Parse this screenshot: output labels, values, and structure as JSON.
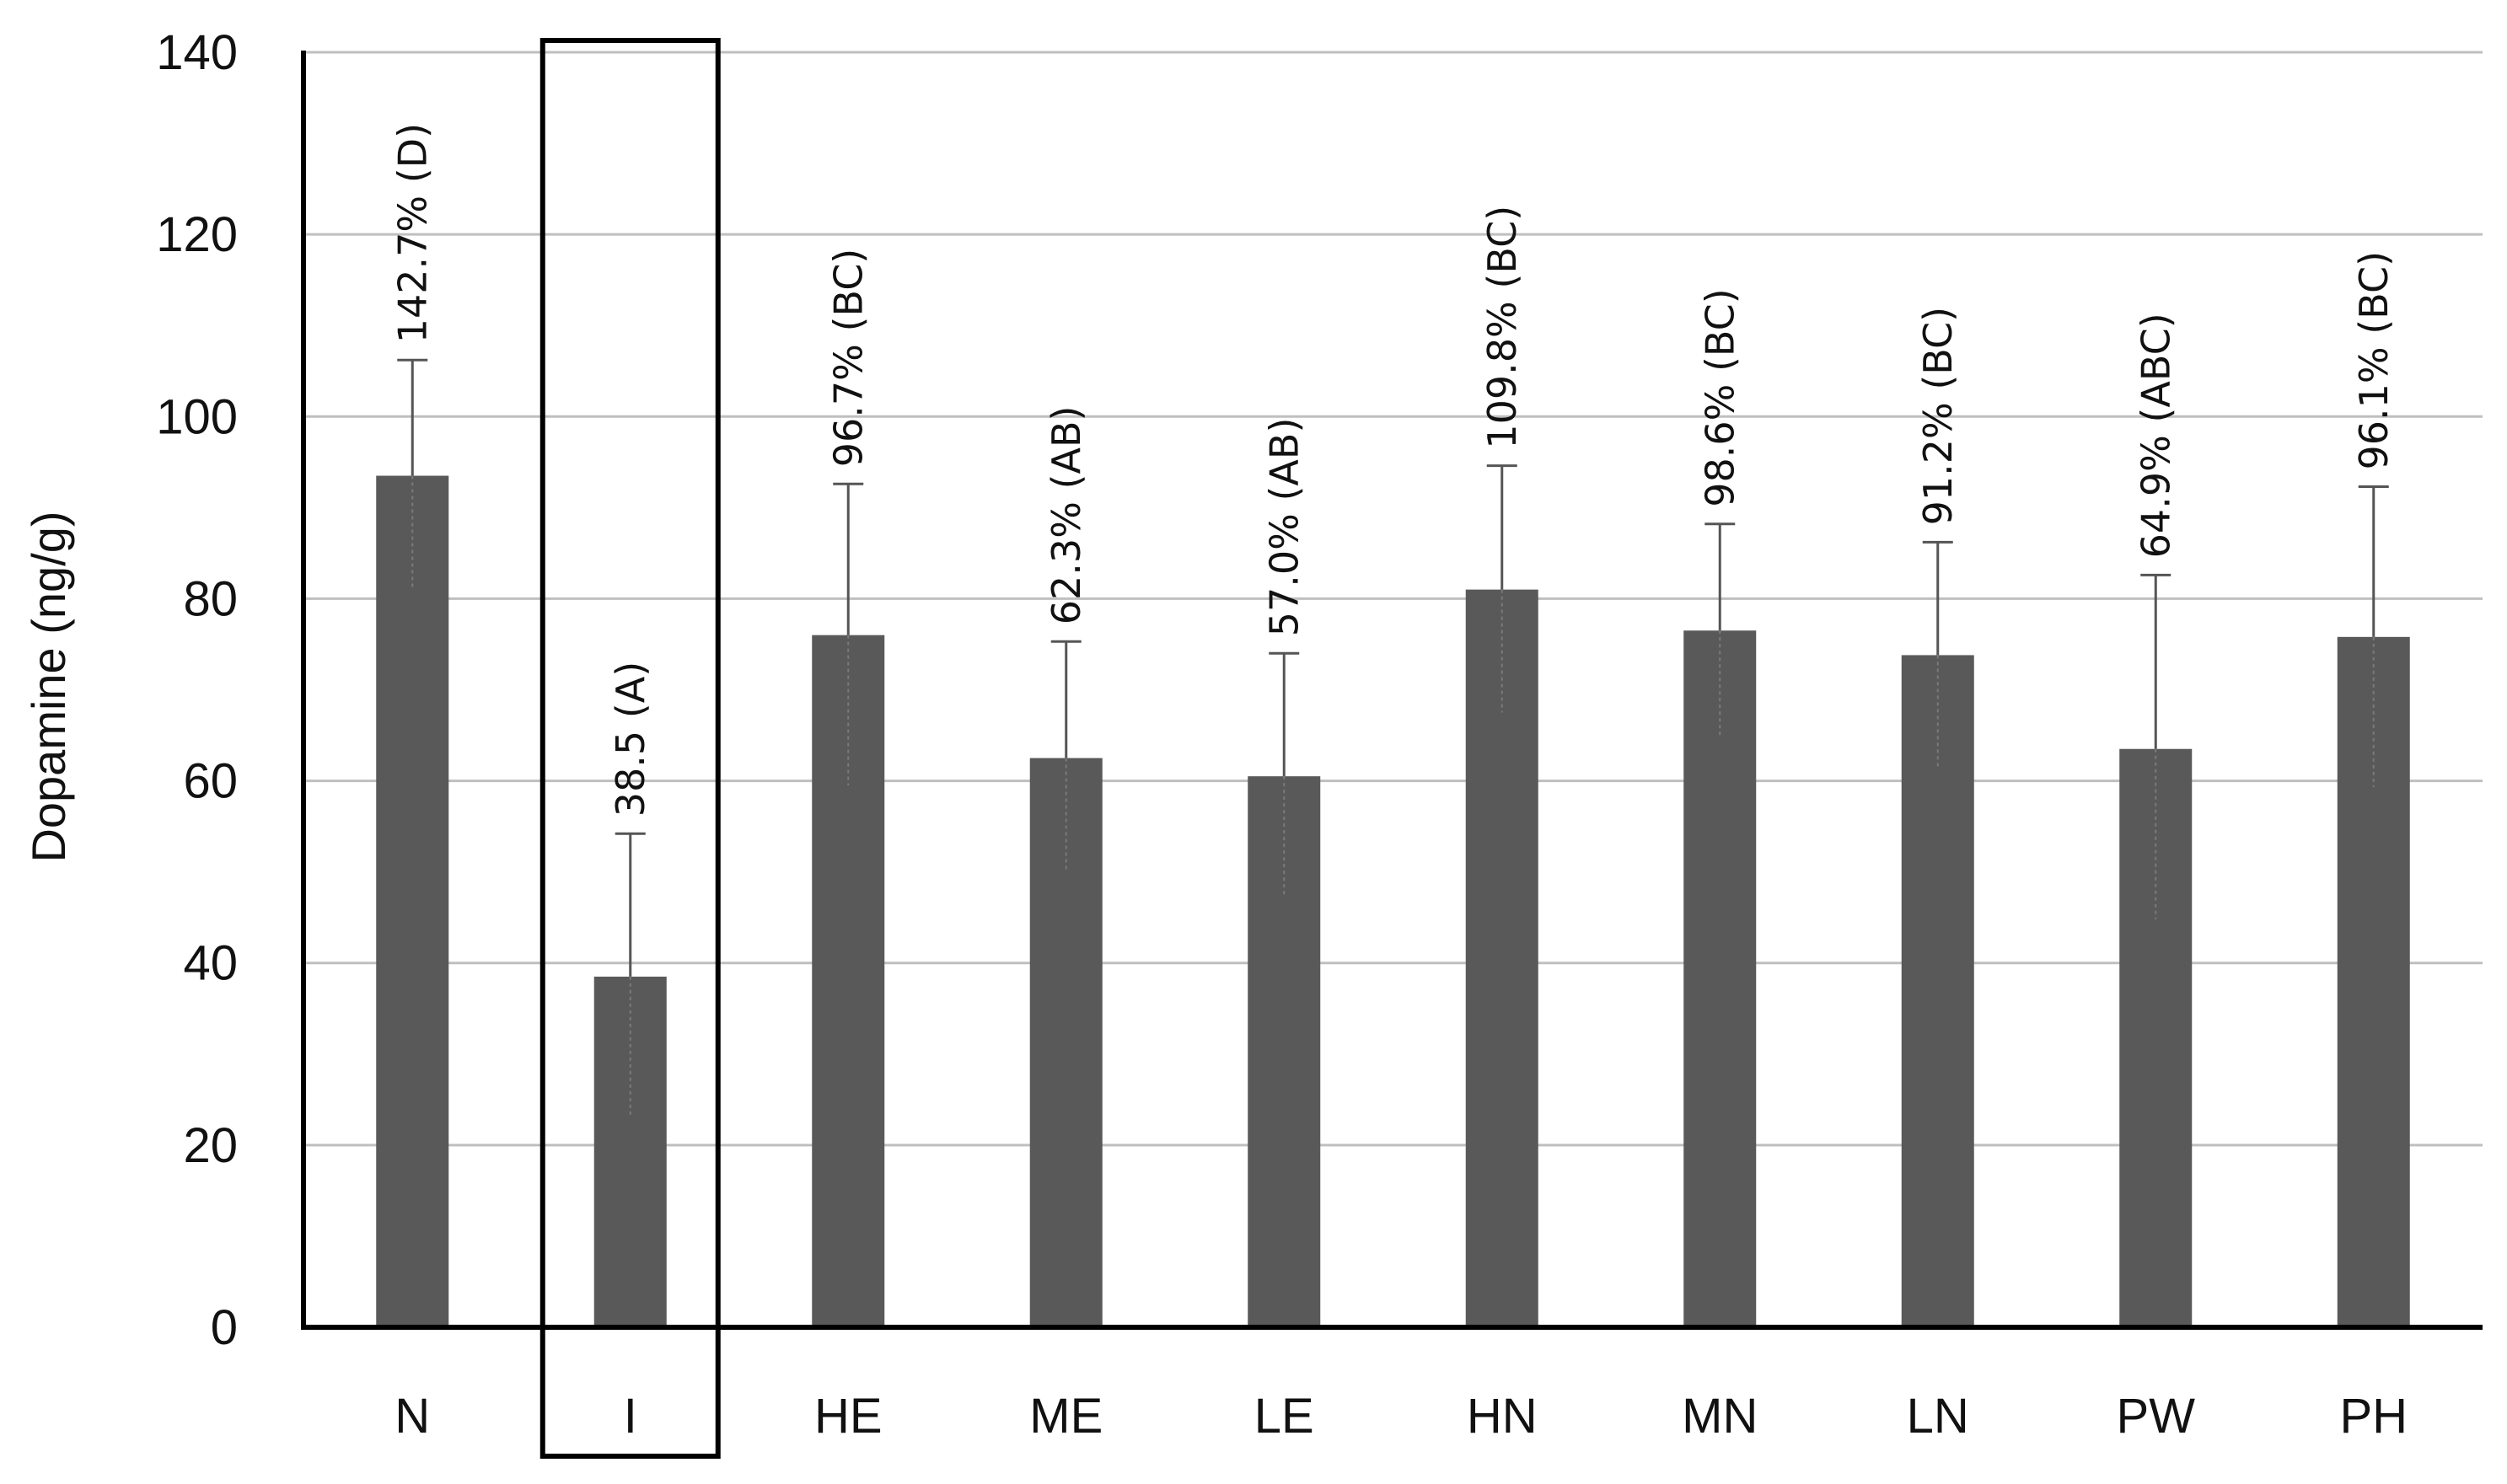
{
  "chart_data": {
    "type": "bar",
    "title": "",
    "xlabel": "",
    "ylabel": "Dopamine (ng/g)",
    "ylim": [
      0,
      140
    ],
    "yticks": [
      0,
      20,
      40,
      60,
      80,
      100,
      120,
      140
    ],
    "grid": true,
    "categories": [
      "N",
      "I",
      "HE",
      "ME",
      "LE",
      "HN",
      "MN",
      "LN",
      "PW",
      "PH"
    ],
    "values": [
      93.5,
      38.5,
      76,
      62.5,
      60.5,
      81,
      76.5,
      73.8,
      63.5,
      75.8
    ],
    "error_upper": [
      106.2,
      54.2,
      92.6,
      75.3,
      74,
      94.6,
      88.2,
      86.2,
      82.6,
      92.3
    ],
    "error_lower": [
      81,
      23,
      59.5,
      50,
      47.2,
      67.5,
      65,
      61.3,
      44.8,
      59.3
    ],
    "data_labels": [
      "142.7% (D)",
      "38.5 (A)",
      "96.7% (BC)",
      "62.3% (AB)",
      "57.0% (AB)",
      "109.8% (BC)",
      "98.6% (BC)",
      "91.2% (BC)",
      "64.9% (ABC)",
      "96.1% (BC)"
    ],
    "highlighted_category": "I",
    "colors": {
      "bar": "#595959",
      "grid": "#bfbfbf",
      "axis": "#000000",
      "error_bar": "#555555",
      "highlight_box": "#000000"
    }
  }
}
